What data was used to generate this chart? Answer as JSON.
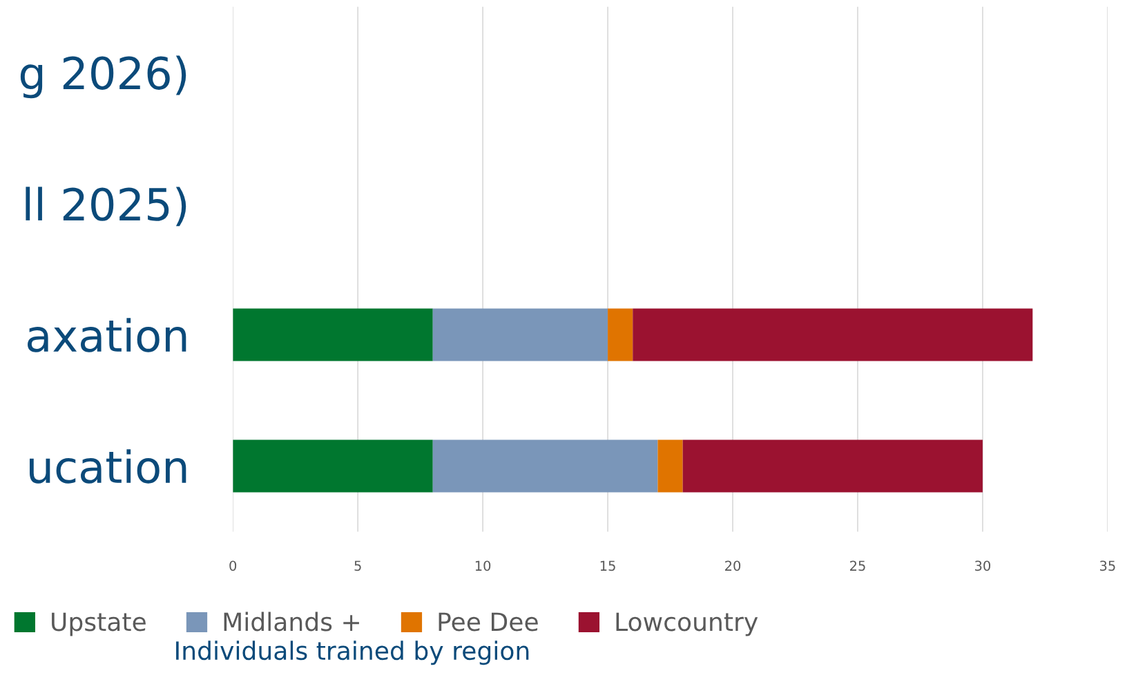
{
  "chart_data": {
    "type": "bar",
    "orientation": "horizontal",
    "stacked": true,
    "title": "Individuals trained by region",
    "categories": [
      "g 2026)",
      "ll 2025)",
      "axation",
      "ucation"
    ],
    "series": [
      {
        "name": "Upstate",
        "color": "#00772f",
        "values": [
          null,
          null,
          8,
          8
        ]
      },
      {
        "name": "Midlands +",
        "color": "#7a96b9",
        "values": [
          null,
          null,
          7,
          9
        ]
      },
      {
        "name": "Pee Dee",
        "color": "#e07400",
        "values": [
          null,
          null,
          1,
          1
        ]
      },
      {
        "name": "Lowcountry",
        "color": "#9b1230",
        "values": [
          null,
          null,
          16,
          12
        ]
      }
    ],
    "xlim": [
      0,
      35
    ],
    "xticks": [
      0,
      5,
      10,
      15,
      20,
      25,
      30,
      35
    ],
    "grid": "x",
    "legend": "bottom"
  }
}
